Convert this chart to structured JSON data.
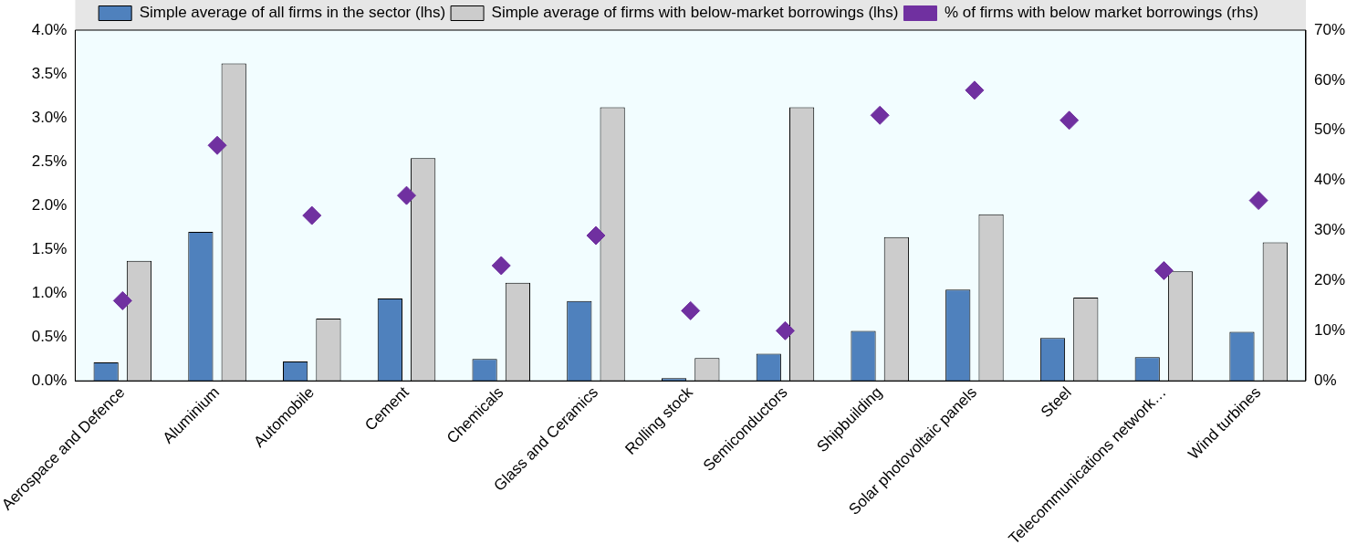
{
  "chart_data": {
    "type": "bar",
    "categories": [
      "Aerospace and Defence",
      "Aluminium",
      "Automobile",
      "Cement",
      "Chemicals",
      "Glass and Ceramics",
      "Rolling stock",
      "Semiconductors",
      "Shipbuilding",
      "Solar photovoltaic panels",
      "Steel",
      "Telecommunications network…",
      "Wind turbines"
    ],
    "series": [
      {
        "name": "Simple average of all firms in the sector (lhs)",
        "color": "#4f81bd",
        "values": [
          0.21,
          1.7,
          0.22,
          0.94,
          0.25,
          0.91,
          0.03,
          0.31,
          0.57,
          1.04,
          0.49,
          0.27,
          0.56
        ]
      },
      {
        "name": "Simple average of firms with below-market borrowings (lhs)",
        "color": "#cccccc",
        "values": [
          1.37,
          3.62,
          0.71,
          2.54,
          1.12,
          3.12,
          0.26,
          3.12,
          1.64,
          1.9,
          0.95,
          1.25,
          1.58
        ]
      },
      {
        "name": "% of firms with below market borrowings (rhs)",
        "type": "scatter",
        "axis": "y2",
        "marker": "diamond",
        "color": "#7030a0",
        "values": [
          16,
          47,
          33,
          37,
          23,
          29,
          14,
          10,
          53,
          58,
          52,
          22,
          36
        ]
      }
    ],
    "ylim": [
      0,
      4
    ],
    "yticks": [
      {
        "value": 0,
        "label": "0.0%"
      },
      {
        "value": 0.5,
        "label": "0.5%"
      },
      {
        "value": 1,
        "label": "1.0%"
      },
      {
        "value": 1.5,
        "label": "1.5%"
      },
      {
        "value": 2,
        "label": "2.0%"
      },
      {
        "value": 2.5,
        "label": "2.5%"
      },
      {
        "value": 3,
        "label": "3.0%"
      },
      {
        "value": 3.5,
        "label": "3.5%"
      },
      {
        "value": 4,
        "label": "4.0%"
      }
    ],
    "y2lim": [
      0,
      70
    ],
    "y2ticks": [
      {
        "value": 0,
        "label": "0%"
      },
      {
        "value": 10,
        "label": "10%"
      },
      {
        "value": 20,
        "label": "20%"
      },
      {
        "value": 30,
        "label": "30%"
      },
      {
        "value": 40,
        "label": "40%"
      },
      {
        "value": 50,
        "label": "50%"
      },
      {
        "value": 60,
        "label": "60%"
      },
      {
        "value": 70,
        "label": "70%"
      }
    ],
    "grid": false,
    "legend": "top"
  }
}
